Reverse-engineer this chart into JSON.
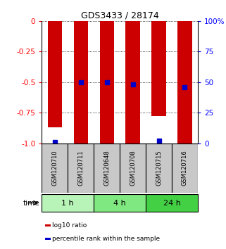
{
  "title": "GDS3433 / 28174",
  "samples": [
    "GSM120710",
    "GSM120711",
    "GSM120648",
    "GSM120708",
    "GSM120715",
    "GSM120716"
  ],
  "groups": [
    {
      "label": "1 h",
      "indices": [
        0,
        1
      ],
      "color": "#b8f4b8"
    },
    {
      "label": "4 h",
      "indices": [
        2,
        3
      ],
      "color": "#80e880"
    },
    {
      "label": "24 h",
      "indices": [
        4,
        5
      ],
      "color": "#44d044"
    }
  ],
  "log10_ratio": [
    -0.87,
    -1.0,
    -1.0,
    -1.0,
    -0.78,
    -1.0
  ],
  "percentile_rank": [
    1.0,
    50.0,
    50.0,
    48.0,
    2.0,
    46.0
  ],
  "ylim_left": [
    -1.0,
    0.0
  ],
  "ylim_right": [
    0.0,
    100.0
  ],
  "yticks_left": [
    0,
    -0.25,
    -0.5,
    -0.75,
    -1.0
  ],
  "yticks_right": [
    100,
    75,
    50,
    25,
    0
  ],
  "bar_color": "#cc0000",
  "dot_color": "#0000cc",
  "bar_width": 0.55,
  "background_color": "#ffffff",
  "label_log10": "log10 ratio",
  "label_percentile": "percentile rank within the sample",
  "time_label": "time",
  "group_box_color": "#c8c8c8",
  "title_fontsize": 9,
  "tick_fontsize": 7.5,
  "sample_fontsize": 6,
  "group_fontsize": 8,
  "legend_fontsize": 6.5
}
